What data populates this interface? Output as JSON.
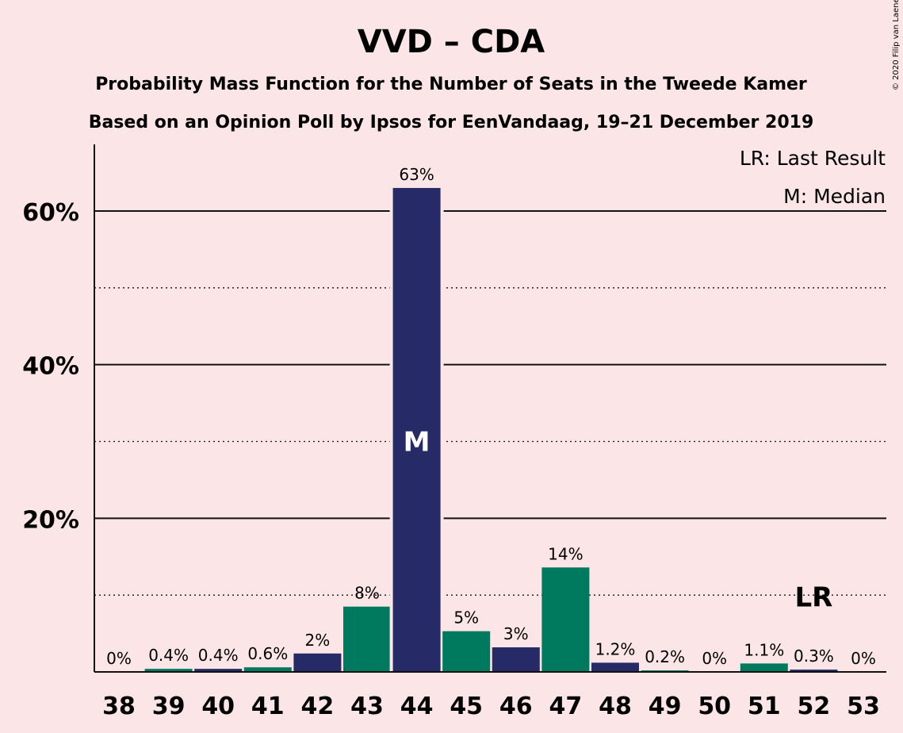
{
  "title": "VVD – CDA",
  "subtitle1": "Probability Mass Function for the Number of Seats in the Tweede Kamer",
  "subtitle2": "Based on an Opinion Poll by Ipsos for EenVandaag, 19–21 December 2019",
  "copyright": "© 2020 Filip van Laenen",
  "legend": {
    "last_result": "LR: Last Result",
    "median": "M: Median"
  },
  "colors": {
    "background": "#FCE5E6",
    "navy": "#262B68",
    "green": "#007A5E"
  },
  "chart_data": {
    "type": "bar",
    "categories": [
      "38",
      "39",
      "40",
      "41",
      "42",
      "43",
      "44",
      "45",
      "46",
      "47",
      "48",
      "49",
      "50",
      "51",
      "52",
      "53"
    ],
    "values": [
      0,
      0.4,
      0.4,
      0.6,
      2.4,
      8.5,
      63,
      5.3,
      3.2,
      13.6,
      1.2,
      0.2,
      0,
      1.1,
      0.3,
      0
    ],
    "labels": [
      "0%",
      "0.4%",
      "0.4%",
      "0.6%",
      "2%",
      "8%",
      "63%",
      "5%",
      "3%",
      "14%",
      "1.2%",
      "0.2%",
      "0%",
      "1.1%",
      "0.3%",
      "0%"
    ],
    "bar_colors": [
      "navy",
      "green",
      "navy",
      "green",
      "navy",
      "green",
      "navy",
      "green",
      "navy",
      "green",
      "navy",
      "green",
      "navy",
      "green",
      "navy",
      "green"
    ],
    "yticks": [
      {
        "value": 20,
        "label": "20%"
      },
      {
        "value": 40,
        "label": "40%"
      },
      {
        "value": 60,
        "label": "60%"
      }
    ],
    "minor_gridlines": [
      10,
      30,
      50
    ],
    "ylim": [
      0,
      68
    ],
    "median_category": "44",
    "median_marker": "M",
    "last_result_category": "52",
    "last_result_marker": "LR",
    "legend_position": "top-right"
  }
}
